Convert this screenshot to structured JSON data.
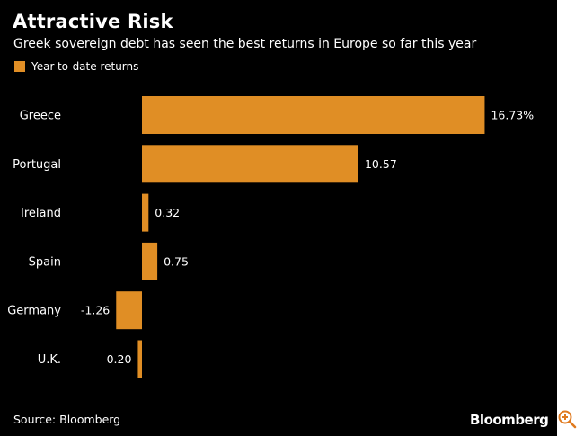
{
  "title": "Attractive Risk",
  "subtitle": "Greek sovereign debt has seen the best returns in Europe so far this year",
  "source": "Source: Bloomberg",
  "brand": "Bloomberg",
  "colors": {
    "background": "#000000",
    "bar": "#E08E25",
    "text": "#ffffff"
  },
  "icons": {
    "zoom": "zoom-in-icon"
  },
  "chart_data": {
    "type": "bar",
    "orientation": "horizontal",
    "title": "Attractive Risk",
    "subtitle": "Greek sovereign debt has seen the best returns in Europe so far this year",
    "legend": {
      "entries": [
        "Year-to-date returns"
      ],
      "placement": "top-left"
    },
    "categories": [
      "Greece",
      "Portugal",
      "Ireland",
      "Spain",
      "Germany",
      "U.K."
    ],
    "series": [
      {
        "name": "Year-to-date returns",
        "values": [
          16.73,
          10.57,
          0.32,
          0.75,
          -1.26,
          -0.2
        ]
      }
    ],
    "data_labels": [
      "16.73%",
      "10.57",
      "0.32",
      "0.75",
      "-1.26",
      "-0.20"
    ],
    "xlim": [
      -1.26,
      16.73
    ],
    "grid": false
  }
}
